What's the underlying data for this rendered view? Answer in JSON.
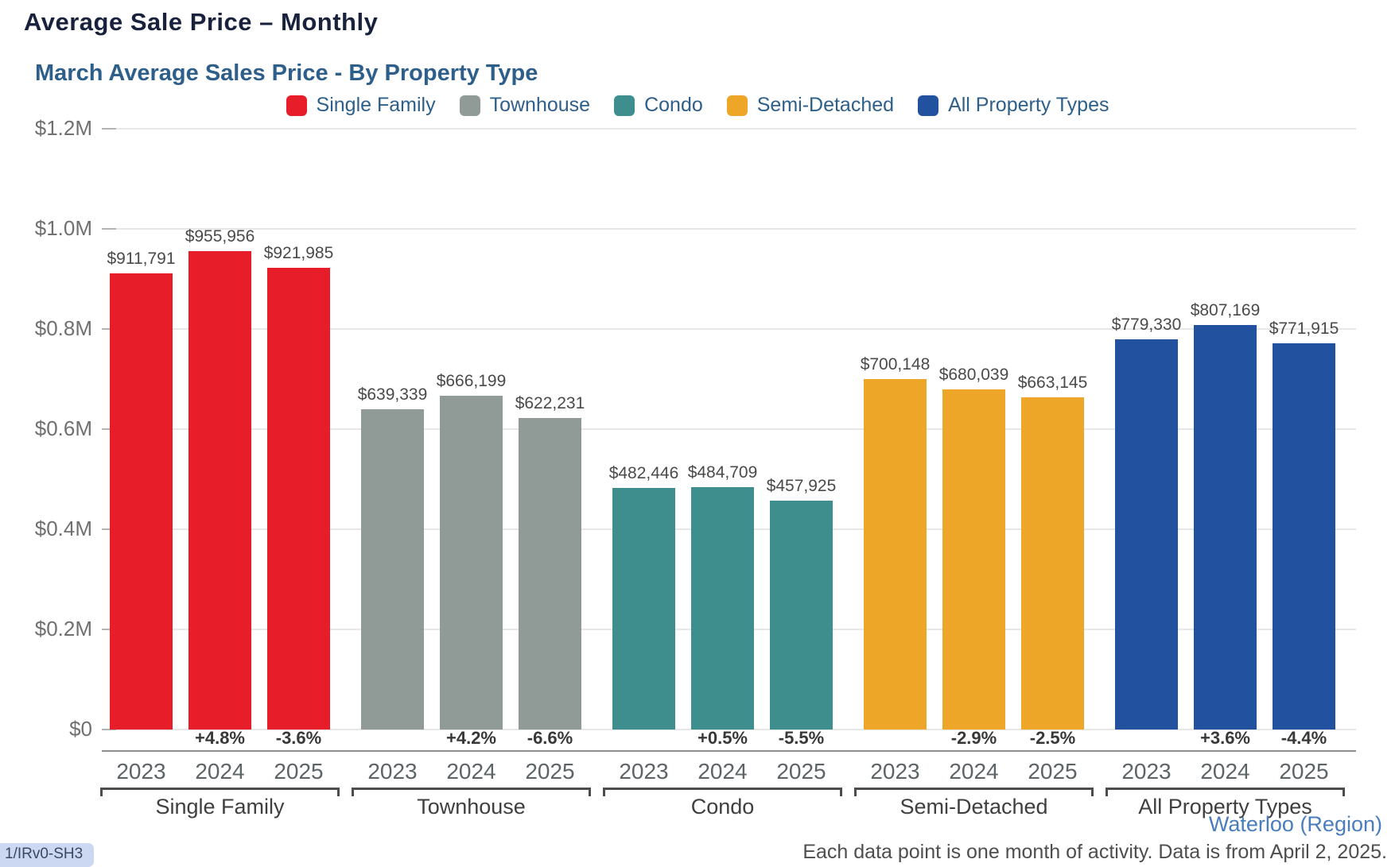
{
  "page": {
    "title": "Average Sale Price – Monthly",
    "status_badge": "1/IRv0-SH3"
  },
  "chart": {
    "subtitle": "March Average Sales Price - By Property Type",
    "region_link": "Waterloo (Region)",
    "footnote": "Each data point is one month of activity. Data is from April 2, 2025."
  },
  "colors": {
    "single_family": "#e81d2a",
    "townhouse": "#909a96",
    "condo": "#3d8e8d",
    "semi_detached": "#eda627",
    "all_property_types": "#22529f",
    "title_text": "#18223d",
    "subtitle_text": "#2d5f8a",
    "gridline": "#e7e7e7",
    "link_blue": "#4a7dbd"
  },
  "chart_data": {
    "type": "bar",
    "title": "March Average Sales Price - By Property Type",
    "ylabel": "",
    "xlabel": "",
    "ylim": [
      0,
      1200000
    ],
    "grid": true,
    "legend_position": "top",
    "yticks": [
      0,
      200000,
      400000,
      600000,
      800000,
      1000000,
      1200000
    ],
    "ytick_labels": [
      "$0",
      "$0.2M",
      "$0.4M",
      "$0.6M",
      "$0.8M",
      "$1.0M",
      "$1.2M"
    ],
    "years": [
      "2023",
      "2024",
      "2025"
    ],
    "legend": [
      {
        "name": "Single Family",
        "color": "#e81d2a"
      },
      {
        "name": "Townhouse",
        "color": "#909a96"
      },
      {
        "name": "Condo",
        "color": "#3d8e8d"
      },
      {
        "name": "Semi-Detached",
        "color": "#eda627"
      },
      {
        "name": "All Property Types",
        "color": "#22529f"
      }
    ],
    "groups": [
      {
        "label": "Single Family",
        "color": "#e81d2a",
        "values": [
          911791,
          955956,
          921985
        ],
        "value_labels": [
          "$911,791",
          "$955,956",
          "$921,985"
        ],
        "pct_changes": [
          null,
          "+4.8%",
          "-3.6%"
        ]
      },
      {
        "label": "Townhouse",
        "color": "#909a96",
        "values": [
          639339,
          666199,
          622231
        ],
        "value_labels": [
          "$639,339",
          "$666,199",
          "$622,231"
        ],
        "pct_changes": [
          null,
          "+4.2%",
          "-6.6%"
        ]
      },
      {
        "label": "Condo",
        "color": "#3d8e8d",
        "values": [
          482446,
          484709,
          457925
        ],
        "value_labels": [
          "$482,446",
          "$484,709",
          "$457,925"
        ],
        "pct_changes": [
          null,
          "+0.5%",
          "-5.5%"
        ]
      },
      {
        "label": "Semi-Detached",
        "color": "#eda627",
        "values": [
          700148,
          680039,
          663145
        ],
        "value_labels": [
          "$700,148",
          "$680,039",
          "$663,145"
        ],
        "pct_changes": [
          null,
          "-2.9%",
          "-2.5%"
        ]
      },
      {
        "label": "All Property Types",
        "color": "#22529f",
        "values": [
          779330,
          807169,
          771915
        ],
        "value_labels": [
          "$779,330",
          "$807,169",
          "$771,915"
        ],
        "pct_changes": [
          null,
          "+3.6%",
          "-4.4%"
        ]
      }
    ]
  }
}
